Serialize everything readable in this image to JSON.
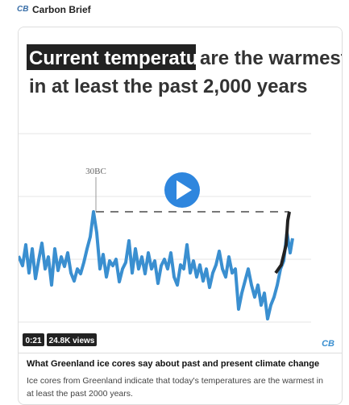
{
  "header": {
    "logo": "CB",
    "name": "Carbon Brief"
  },
  "video": {
    "headline_highlight": "Current temperatures",
    "headline_rest": "are the warmest",
    "headline_line2": "in at least the past 2,000 years",
    "annotation": "30BC",
    "duration": "0:21",
    "views": "24.8K views",
    "watermark": "CB"
  },
  "card": {
    "title": "What Greenland ice cores say about past and present climate change",
    "description": "Ice cores from Greenland indicate that today's temperatures are the warmest in at least the past 2000 years."
  }
}
